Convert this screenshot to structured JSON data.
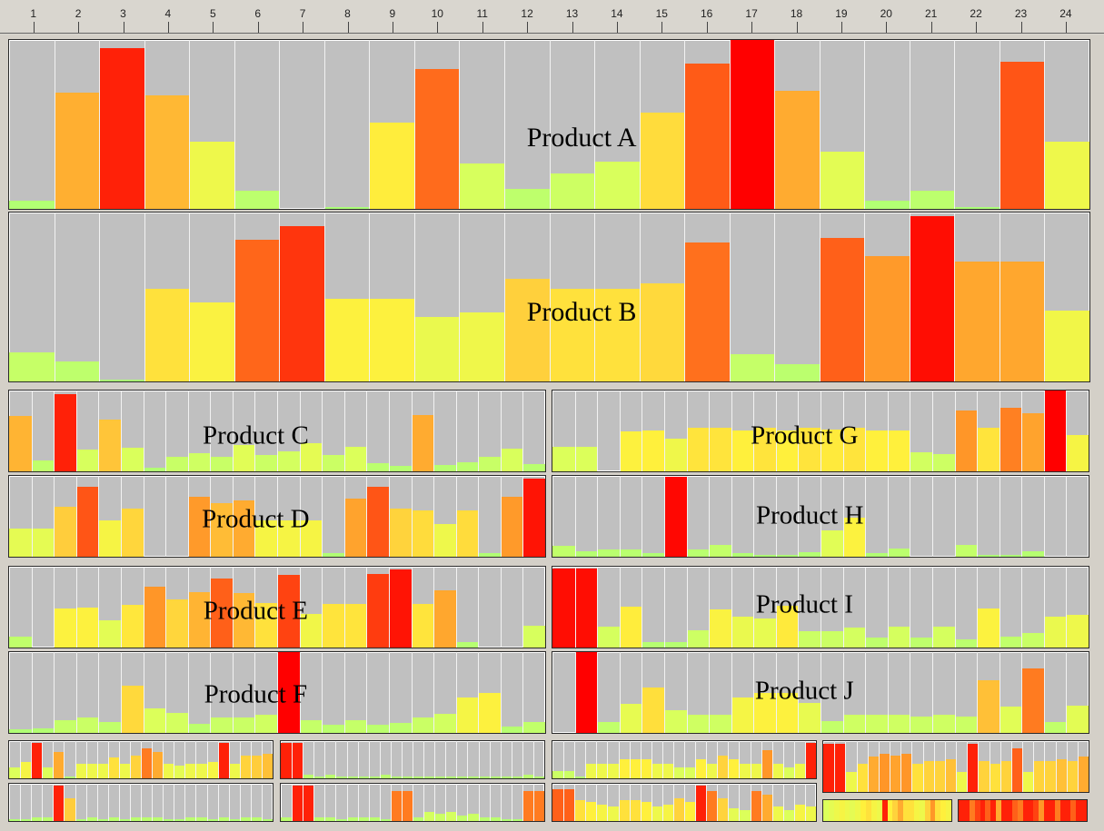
{
  "ruler": {
    "ticks": [
      1,
      2,
      3,
      4,
      5,
      6,
      7,
      8,
      9,
      10,
      11,
      12,
      13,
      14,
      15,
      16,
      17,
      18,
      19,
      20,
      21,
      22,
      23,
      24
    ]
  },
  "chart_data": {
    "type": "bar",
    "categories": [
      1,
      2,
      3,
      4,
      5,
      6,
      7,
      8,
      9,
      10,
      11,
      12,
      13,
      14,
      15,
      16,
      17,
      18,
      19,
      20,
      21,
      22,
      23,
      24
    ],
    "ylim": [
      0,
      1
    ],
    "series": [
      {
        "name": "Product A",
        "values": [
          0.05,
          0.69,
          0.95,
          0.67,
          0.4,
          0.11,
          0,
          0.01,
          0.51,
          0.83,
          0.27,
          0.12,
          0.21,
          0.28,
          0.57,
          0.86,
          1.0,
          0.7,
          0.34,
          0.05,
          0.11,
          0.01,
          0.87,
          0.4
        ]
      },
      {
        "name": "Product B",
        "values": [
          0.17,
          0.12,
          0.01,
          0.55,
          0.47,
          0.84,
          0.92,
          0.49,
          0.49,
          0.38,
          0.41,
          0.61,
          0.55,
          0.55,
          0.58,
          0.82,
          0.16,
          0.1,
          0.85,
          0.74,
          0.98,
          0.71,
          0.71,
          0.42
        ]
      },
      {
        "name": "Product C",
        "values": [
          0.68,
          0.13,
          0.95,
          0.27,
          0.64,
          0.29,
          0.05,
          0.18,
          0.22,
          0.18,
          0.33,
          0.2,
          0.25,
          0.35,
          0.2,
          0.3,
          0.1,
          0.07,
          0.7,
          0.08,
          0.11,
          0.18,
          0.28,
          0.09
        ]
      },
      {
        "name": "Product D",
        "values": [
          0.35,
          0.35,
          0.62,
          0.87,
          0.45,
          0.59,
          0,
          0,
          0.74,
          0.66,
          0.7,
          0.45,
          0.45,
          0.45,
          0.04,
          0.72,
          0.87,
          0.6,
          0.57,
          0.4,
          0.57,
          0.04,
          0.74,
          0.97
        ]
      },
      {
        "name": "Product E",
        "values": [
          0.13,
          0,
          0.48,
          0.49,
          0.34,
          0.53,
          0.75,
          0.59,
          0.68,
          0.85,
          0.67,
          0.55,
          0.9,
          0.42,
          0.54,
          0.54,
          0.91,
          0.97,
          0.54,
          0.71,
          0.07,
          0,
          0,
          0.27
        ]
      },
      {
        "name": "Product F",
        "values": [
          0.04,
          0.06,
          0.16,
          0.19,
          0.14,
          0.58,
          0.3,
          0.25,
          0.11,
          0.19,
          0.19,
          0.23,
          1.0,
          0.16,
          0.1,
          0.16,
          0.1,
          0.12,
          0.19,
          0.24,
          0.44,
          0.49,
          0.08,
          0.14
        ]
      },
      {
        "name": "Product G",
        "values": [
          0.3,
          0.3,
          0,
          0.49,
          0.5,
          0.41,
          0.54,
          0.54,
          0.5,
          0.54,
          0.5,
          0.54,
          0.52,
          0.54,
          0.5,
          0.5,
          0.24,
          0.21,
          0.75,
          0.54,
          0.79,
          0.72,
          1.0,
          0.45
        ]
      },
      {
        "name": "Product H",
        "values": [
          0.14,
          0.07,
          0.09,
          0.09,
          0.04,
          0.99,
          0.09,
          0.15,
          0.05,
          0.02,
          0.02,
          0.06,
          0.33,
          0.48,
          0.05,
          0.1,
          0,
          0,
          0.15,
          0.02,
          0.02,
          0.07,
          0,
          0
        ]
      },
      {
        "name": "Product I",
        "values": [
          0.98,
          0.98,
          0.26,
          0.51,
          0.07,
          0.07,
          0.21,
          0.47,
          0.38,
          0.36,
          0.52,
          0.2,
          0.2,
          0.25,
          0.12,
          0.26,
          0.12,
          0.26,
          0.1,
          0.48,
          0.13,
          0.18,
          0.38,
          0.4
        ]
      },
      {
        "name": "Product J",
        "values": [
          0,
          1.0,
          0.14,
          0.36,
          0.56,
          0.28,
          0.22,
          0.22,
          0.44,
          0.49,
          0.49,
          0.37,
          0.15,
          0.22,
          0.22,
          0.22,
          0.2,
          0.22,
          0.2,
          0.65,
          0.33,
          0.8,
          0.14,
          0.34
        ]
      }
    ],
    "mini": [
      [
        0.3,
        0.45,
        0.95,
        0.3,
        0.7,
        0.05,
        0.4,
        0.4,
        0.4,
        0.55,
        0.4,
        0.6,
        0.8,
        0.7,
        0.4,
        0.35,
        0.4,
        0.4,
        0.45,
        0.95,
        0.4,
        0.6,
        0.62,
        0.65
      ],
      [
        0.95,
        0.95,
        0.1,
        0.05,
        0.1,
        0.05,
        0.05,
        0.05,
        0.05,
        0.1,
        0.05,
        0.05,
        0.05,
        0.05,
        0.05,
        0.05,
        0.05,
        0.05,
        0.05,
        0.05,
        0.05,
        0.05,
        0.1,
        0.05
      ],
      [
        0.2,
        0.2,
        0.05,
        0.4,
        0.4,
        0.4,
        0.5,
        0.5,
        0.5,
        0.4,
        0.4,
        0.3,
        0.3,
        0.5,
        0.4,
        0.6,
        0.5,
        0.4,
        0.4,
        0.75,
        0.4,
        0.3,
        0.4,
        0.95
      ],
      [
        0.95,
        0.95,
        0.4,
        0.55,
        0.7,
        0.75,
        0.72,
        0.75,
        0.55,
        0.6,
        0.6,
        0.65,
        0.4,
        0.95,
        0.6,
        0.55,
        0.6,
        0.85,
        0.4,
        0.6,
        0.6,
        0.65,
        0.6,
        0.7
      ],
      [
        0.05,
        0.05,
        0.1,
        0.1,
        0.95,
        0.62,
        0.05,
        0.1,
        0.05,
        0.1,
        0.05,
        0.1,
        0.1,
        0.1,
        0.05,
        0.05,
        0.1,
        0.1,
        0.05,
        0.1,
        0.05,
        0.1,
        0.1,
        0.05
      ],
      [
        0.1,
        0.95,
        0.95,
        0.1,
        0.1,
        0.05,
        0.1,
        0.1,
        0.1,
        0.05,
        0.8,
        0.8,
        0.1,
        0.25,
        0.2,
        0.25,
        0.15,
        0.2,
        0.1,
        0.1,
        0.05,
        0.05,
        0.8,
        0.8
      ],
      [
        0.85,
        0.85,
        0.55,
        0.5,
        0.45,
        0.4,
        0.55,
        0.55,
        0.5,
        0.4,
        0.45,
        0.6,
        0.5,
        0.95,
        0.8,
        0.6,
        0.35,
        0.3,
        0.8,
        0.7,
        0.4,
        0.3,
        0.45,
        0.4
      ]
    ],
    "strips": [
      [
        0.3,
        0.35,
        0.4,
        0.45,
        0.4,
        0.35,
        0.4,
        0.5,
        0.55,
        0.45,
        0.4,
        0.95,
        0.5,
        0.6,
        0.7,
        0.55,
        0.55,
        0.45,
        0.4,
        0.6,
        0.75,
        0.55,
        0.5,
        0.45
      ],
      [
        0.95,
        0.95,
        0.8,
        0.9,
        0.95,
        0.85,
        0.95,
        0.7,
        0.95,
        0.95,
        0.85,
        0.8,
        0.95,
        0.95,
        0.9,
        0.75,
        0.95,
        0.95,
        0.8,
        0.95,
        0.95,
        0.85,
        0.95,
        0.95
      ]
    ]
  }
}
